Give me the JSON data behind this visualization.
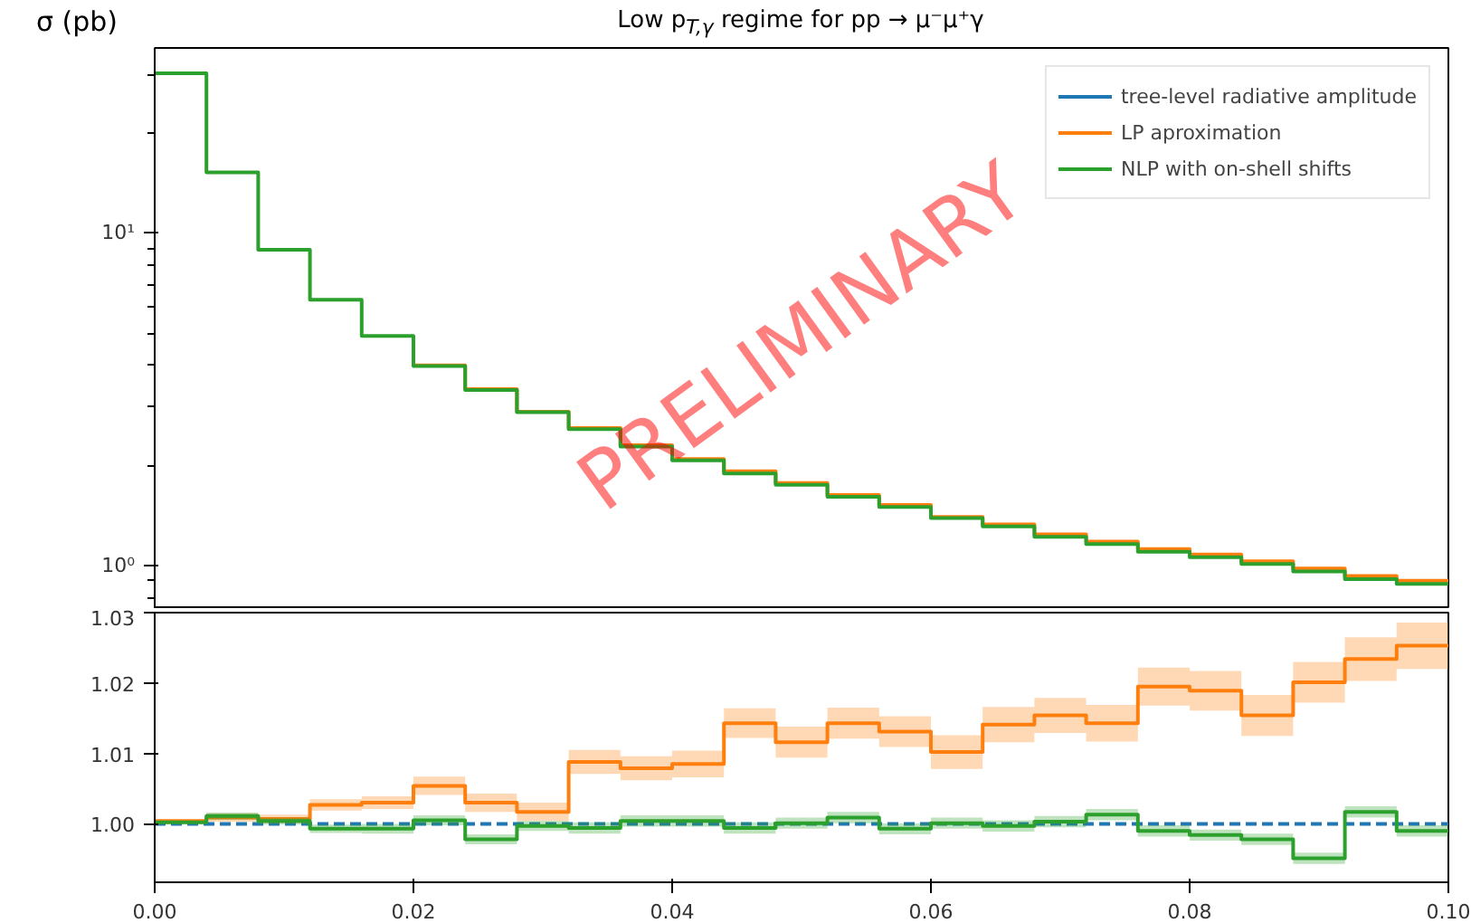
{
  "chart_data": [
    {
      "type": "step",
      "title": "Low p$_{T,γ}$ regime for pp → μ⁻μ⁺γ",
      "ylabel": "σ (pb)",
      "log": "y",
      "grid": false,
      "legend": "top right",
      "tick_labels": "y",
      "line_style": "solid",
      "x": [
        0,
        0.004,
        0.008,
        0.012,
        0.016,
        0.02,
        0.024,
        0.028,
        0.032,
        0.036,
        0.04,
        0.044,
        0.048,
        0.052,
        0.056,
        0.06,
        0.064,
        0.068,
        0.072,
        0.076,
        0.08,
        0.084,
        0.088,
        0.092,
        0.096,
        0.1
      ],
      "xlim": [
        0,
        0.1
      ],
      "ylim": [
        0.74,
        36
      ],
      "yticks": [
        {
          "value": 1,
          "label": "10⁰"
        },
        {
          "value": 10,
          "label": "10¹"
        }
      ],
      "annotations": [
        "PRELIMINARY"
      ],
      "series": [
        {
          "name": "LP aproximation",
          "color": "#ff7f0e",
          "values": [
            null,
            null,
            null,
            null,
            null,
            4.0,
            3.39,
            2.9,
            2.59,
            2.3,
            2.09,
            1.92,
            1.77,
            1.63,
            1.52,
            1.4,
            1.33,
            1.24,
            1.18,
            1.12,
            1.08,
            1.03,
            0.98,
            0.93,
            0.9,
            0.9
          ]
        },
        {
          "name": "NLP with on-shell shifts",
          "color": "#2ca02c",
          "values": [
            30.2,
            15.2,
            8.9,
            6.3,
            4.9,
            3.98,
            3.37,
            2.89,
            2.57,
            2.28,
            2.07,
            1.89,
            1.75,
            1.61,
            1.5,
            1.39,
            1.31,
            1.22,
            1.16,
            1.1,
            1.06,
            1.01,
            0.96,
            0.91,
            0.88,
            0.88
          ]
        }
      ]
    },
    {
      "type": "step",
      "grid": false,
      "line_style": "solid",
      "x": [
        0,
        0.004,
        0.008,
        0.012,
        0.016,
        0.02,
        0.024,
        0.028,
        0.032,
        0.036,
        0.04,
        0.044,
        0.048,
        0.052,
        0.056,
        0.06,
        0.064,
        0.068,
        0.072,
        0.076,
        0.08,
        0.084,
        0.088,
        0.092,
        0.096,
        0.1
      ],
      "xlim": [
        0,
        0.1
      ],
      "ylim": [
        0.9917,
        1.03
      ],
      "xticks": [
        {
          "value": 0,
          "label": "0.00"
        },
        {
          "value": 0.02,
          "label": "0.02"
        },
        {
          "value": 0.04,
          "label": "0.04"
        },
        {
          "value": 0.06,
          "label": "0.06"
        },
        {
          "value": 0.08,
          "label": "0.08"
        },
        {
          "value": 0.1,
          "label": "0.10"
        }
      ],
      "yticks": [
        {
          "value": 1,
          "label": "1.00"
        },
        {
          "value": 1.01,
          "label": "1.01"
        },
        {
          "value": 1.02,
          "label": "1.02"
        },
        {
          "value": 1.03,
          "label": "1.03"
        }
      ],
      "series": [
        {
          "name": "tree-level radiative amplitude",
          "color": "#1f77b4",
          "line_style": "dashed",
          "values": [
            1,
            1,
            1,
            1,
            1,
            1,
            1,
            1,
            1,
            1,
            1,
            1,
            1,
            1,
            1,
            1,
            1,
            1,
            1,
            1,
            1,
            1,
            1,
            1,
            1,
            1
          ]
        },
        {
          "name": "LP aproximation",
          "color": "#ff7f0e",
          "values": [
            1.0004,
            1.0009,
            1.0007,
            1.0027,
            1.003,
            1.0054,
            1.003,
            1.0017,
            1.0088,
            1.0079,
            1.0085,
            1.0143,
            1.0116,
            1.0143,
            1.0131,
            1.0102,
            1.0141,
            1.0154,
            1.0143,
            1.0195,
            1.0189,
            1.0154,
            1.0201,
            1.0234,
            1.0253,
            1.0253
          ],
          "lower": [
            1.0002,
            1.0003,
            1.0001,
            1.0019,
            1.0021,
            1.0041,
            1.0017,
            1.0004,
            1.0071,
            1.0062,
            1.0066,
            1.0122,
            1.0094,
            1.0121,
            1.0109,
            1.0078,
            1.0116,
            1.0129,
            1.0117,
            1.0168,
            1.0161,
            1.0125,
            1.0172,
            1.0203,
            1.022,
            1.022
          ],
          "upper": [
            1.0006,
            1.0015,
            1.0013,
            1.0035,
            1.0039,
            1.0067,
            1.0043,
            1.003,
            1.0105,
            1.0096,
            1.0104,
            1.0164,
            1.0138,
            1.0165,
            1.0153,
            1.0126,
            1.0166,
            1.0179,
            1.0169,
            1.0222,
            1.0217,
            1.0183,
            1.023,
            1.0265,
            1.0286,
            1.0286
          ]
        },
        {
          "name": "NLP with on-shell shifts",
          "color": "#2ca02c",
          "values": [
            1.0002,
            1.0011,
            1.0004,
            0.9993,
            0.9993,
            1.0005,
            0.9978,
            0.9997,
            0.9994,
            1.0004,
            1.0004,
            0.9994,
            1.0001,
            1.0009,
            0.9993,
            1.0001,
            0.9997,
            1.0003,
            1.0013,
            0.999,
            0.9984,
            0.9978,
            0.9951,
            1.0017,
            0.999,
            0.999
          ],
          "lower": [
            1.0,
            1.0006,
            0.9999,
            0.9987,
            0.9986,
            0.9998,
            0.9971,
            0.999,
            0.9986,
            0.9996,
            0.9996,
            0.9986,
            0.9993,
            1.0001,
            0.9985,
            0.9993,
            0.9989,
            0.9995,
            1.0005,
            0.9982,
            0.9976,
            0.997,
            0.9943,
            1.0009,
            0.9982,
            0.9982
          ],
          "upper": [
            1.0004,
            1.0016,
            1.0009,
            0.9999,
            1.0,
            1.0012,
            0.9985,
            1.0004,
            1.0002,
            1.0012,
            1.0012,
            1.0002,
            1.0009,
            1.0017,
            1.0001,
            1.0009,
            1.0005,
            1.0011,
            1.0021,
            0.9998,
            0.9992,
            0.9986,
            0.9959,
            1.0025,
            0.9998,
            0.9998
          ]
        }
      ]
    }
  ]
}
